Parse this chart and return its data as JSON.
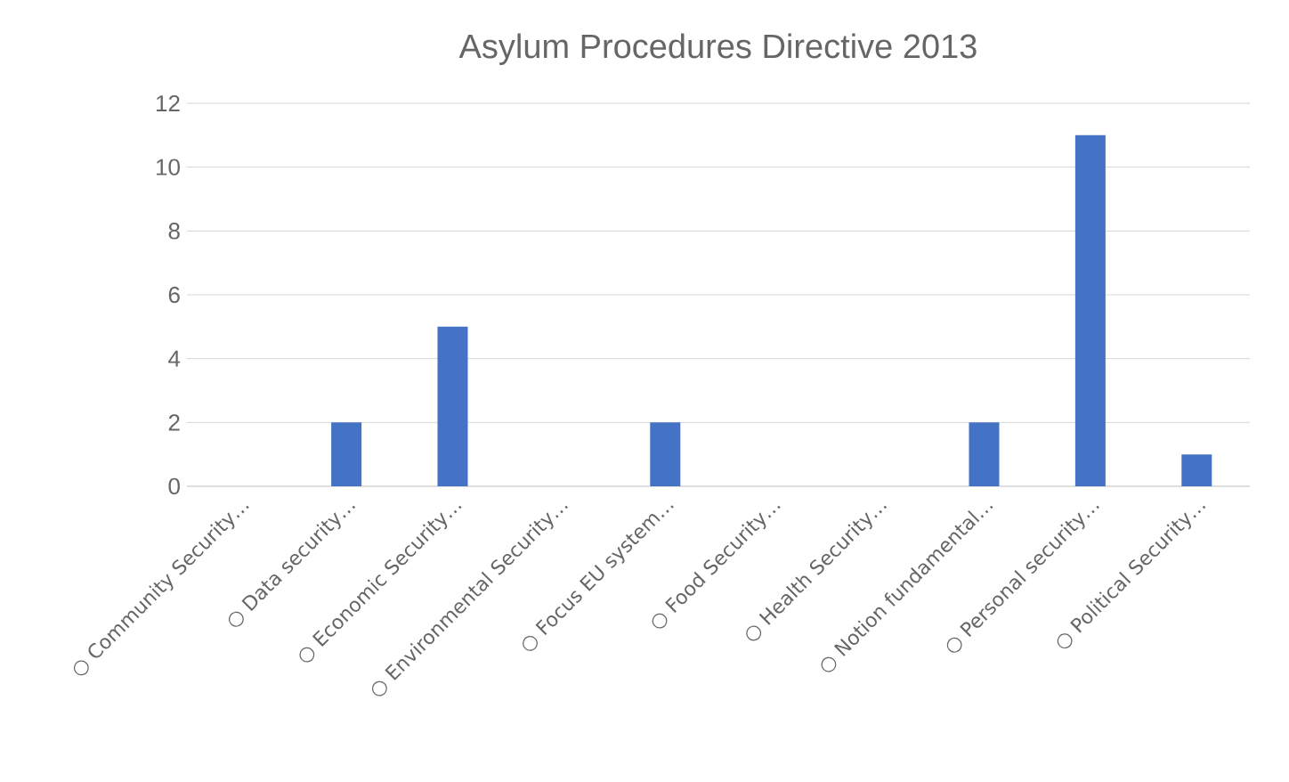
{
  "chart_data": {
    "type": "bar",
    "title": "Asylum Procedures Directive 2013",
    "categories": [
      "○ Community Security…",
      "○ Data security…",
      "○ Economic Security…",
      "○ Environmental Security…",
      "○ Focus EU system…",
      "○ Food Security…",
      "○ Health Security…",
      "○ Notion fundamental…",
      "○ Personal security…",
      "○ Political Security…"
    ],
    "values": [
      0,
      2,
      5,
      0,
      2,
      0,
      0,
      2,
      11,
      1
    ],
    "color": "#4472c4",
    "ylim": [
      0,
      12
    ],
    "yticks": [
      0,
      2,
      4,
      6,
      8,
      10,
      12
    ],
    "grid": "y"
  }
}
